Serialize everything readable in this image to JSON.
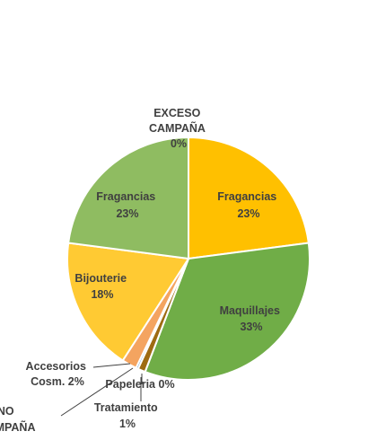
{
  "chart_data": {
    "type": "pie",
    "title": "",
    "slices": [
      {
        "label": "EXCESO CAMPAÑA",
        "display": [
          "EXCESO",
          "CAMPAÑA",
          "0%"
        ],
        "value": 0,
        "color": "#4472c4"
      },
      {
        "label": "Fragancias",
        "display": [
          "Fragancias",
          "23%"
        ],
        "value": 23,
        "color": "#ffc000"
      },
      {
        "label": "Maquillajes",
        "display": [
          "Maquillajes",
          "33%"
        ],
        "value": 33,
        "color": "#70ad47"
      },
      {
        "label": "Papeleria",
        "display": [
          "Papeleria 0%"
        ],
        "value": 0,
        "color": "#a5a5a5"
      },
      {
        "label": "Tratamiento",
        "display": [
          "Tratamiento",
          "1%"
        ],
        "value": 1,
        "color": "#9e6b12"
      },
      {
        "label": "NO CAMPAÑA",
        "display": [
          "NO",
          "CAMPAÑA"
        ],
        "value": 0.3,
        "color": "#5b9bd5"
      },
      {
        "label": "Accesorios Cosm.",
        "display": [
          "Accesorios",
          "Cosm. 2%"
        ],
        "value": 2,
        "color": "#f4a460"
      },
      {
        "label": "Bijouterie",
        "display": [
          "Bijouterie",
          "18%"
        ],
        "value": 18,
        "color": "#ffca33"
      },
      {
        "label": "Fragancias",
        "display": [
          "Fragancias",
          "23%"
        ],
        "value": 23,
        "color": "#8fbc61"
      }
    ]
  }
}
